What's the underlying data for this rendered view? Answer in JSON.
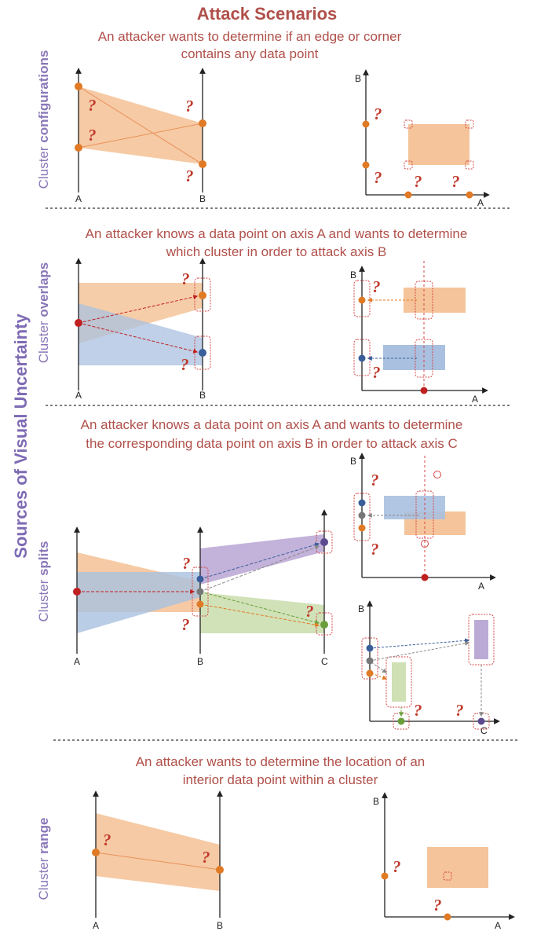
{
  "title": "Attack Scenarios",
  "main_side_label": "Sources of Visual Uncertainty",
  "question_mark": "?",
  "colors": {
    "orange_fill": "#f5c49a",
    "orange_point": "#e07a25",
    "blue_fill": "#a9c0e0",
    "blue_point": "#3a5e9a",
    "purple_fill": "#bcaad6",
    "purple_point": "#5c4a8e",
    "green_fill": "#cfe0b4",
    "green_point": "#6a9e3a",
    "gray_point": "#777777",
    "red_point": "#c02020",
    "highlight": "#d64545"
  },
  "sections": [
    {
      "side_label_light": "Cluster ",
      "side_label_bold": "configurations",
      "scenario_lines": [
        "An attacker wants to determine if an edge or corner",
        "contains any data point"
      ],
      "axis_labels": {
        "a": "A",
        "b": "B"
      }
    },
    {
      "side_label_light": "Cluster ",
      "side_label_bold": "overlaps",
      "scenario_lines": [
        "An attacker knows a data point on axis A and wants to determine",
        "which cluster in order to attack axis B"
      ],
      "axis_labels": {
        "a": "A",
        "b": "B"
      }
    },
    {
      "side_label_light": "Cluster ",
      "side_label_bold": "splits",
      "scenario_lines": [
        "An attacker knows a data point on axis A and wants to determine",
        "the corresponding data point on axis B in order to attack axis C"
      ],
      "axis_labels": {
        "a": "A",
        "b": "B",
        "c": "C"
      }
    },
    {
      "side_label_light": "Cluster ",
      "side_label_bold": "range",
      "scenario_lines": [
        "An attacker wants to determine the location of an",
        "interior data point within a cluster"
      ],
      "axis_labels": {
        "a": "A",
        "b": "B"
      }
    }
  ]
}
